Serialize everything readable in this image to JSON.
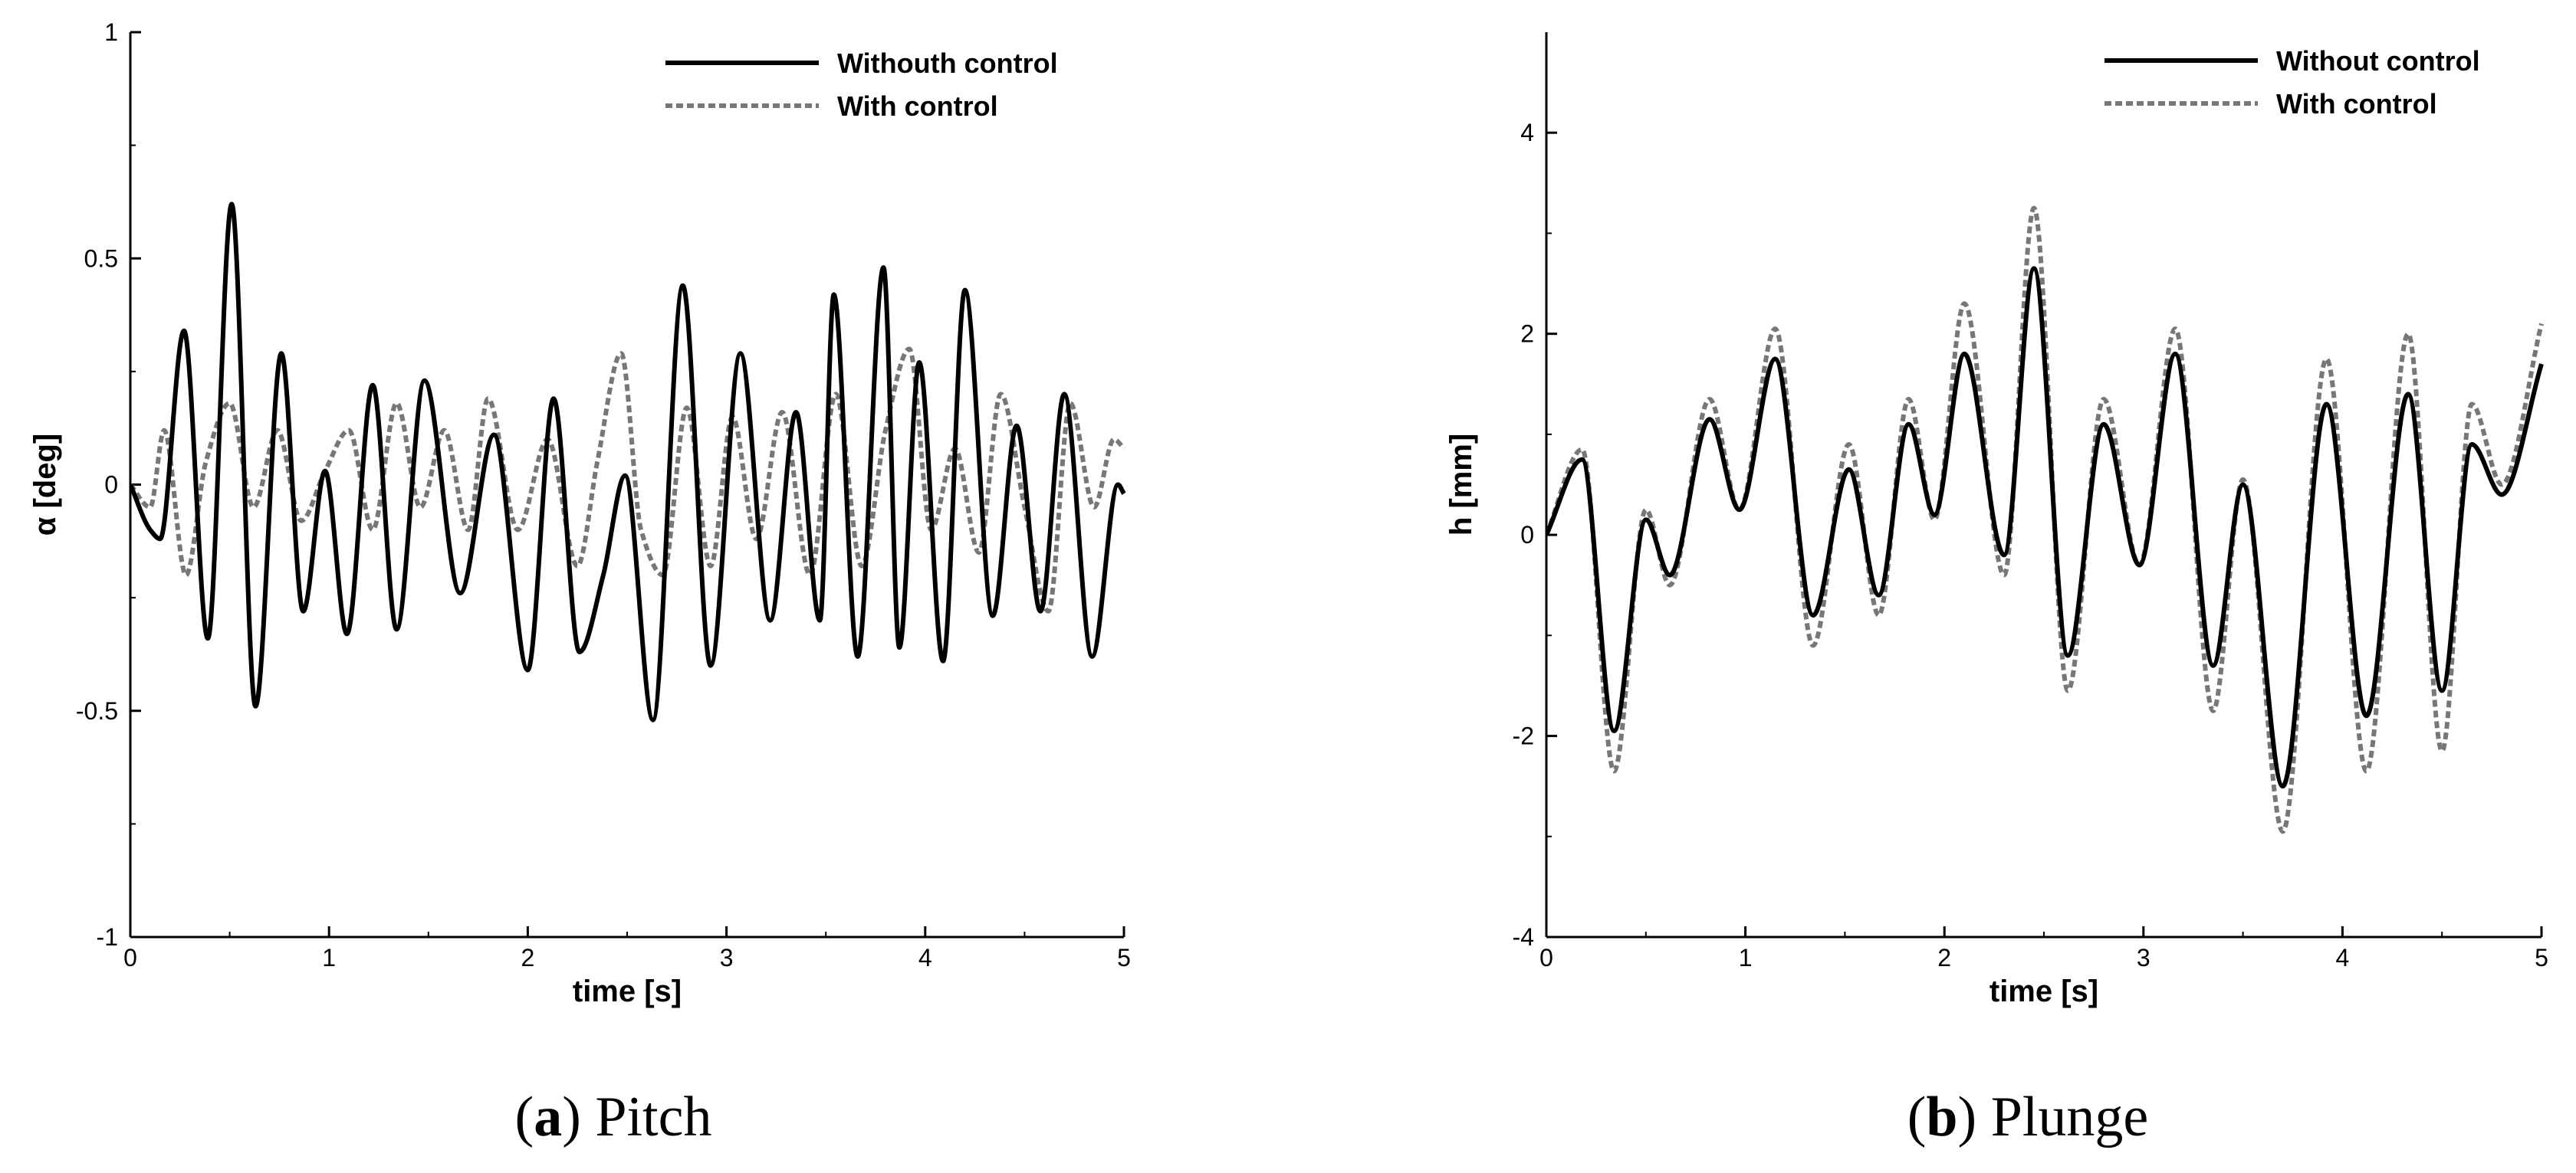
{
  "chart_data": [
    {
      "type": "line",
      "caption_letter": "a",
      "caption_text": "Pitch",
      "xlabel": "time [s]",
      "ylabel": "α [deg]",
      "xlim": [
        0,
        5
      ],
      "ylim": [
        -1,
        1
      ],
      "xticks": [
        "0",
        "1",
        "2",
        "3",
        "4",
        "5"
      ],
      "yticks": [
        "-1",
        "-0.5",
        "0",
        "0.5",
        "1"
      ],
      "legend_position": "top-right",
      "series": [
        {
          "name": "Withouth control",
          "style": "solid",
          "color": "#000000",
          "x": [
            0,
            0.1,
            0.15,
            0.27,
            0.39,
            0.51,
            0.63,
            0.76,
            0.87,
            0.98,
            1.09,
            1.22,
            1.34,
            1.48,
            1.66,
            1.83,
            2.0,
            2.13,
            2.26,
            2.38,
            2.49,
            2.63,
            2.78,
            2.92,
            3.07,
            3.22,
            3.35,
            3.47,
            3.54,
            3.66,
            3.79,
            3.87,
            3.97,
            4.09,
            4.2,
            4.34,
            4.46,
            4.58,
            4.7,
            4.84,
            4.97,
            5.0
          ],
          "y": [
            0,
            -0.1,
            -0.12,
            0.34,
            -0.34,
            0.62,
            -0.49,
            0.29,
            -0.28,
            0.03,
            -0.33,
            0.22,
            -0.32,
            0.23,
            -0.24,
            0.11,
            -0.41,
            0.19,
            -0.37,
            -0.2,
            0.02,
            -0.52,
            0.44,
            -0.4,
            0.29,
            -0.3,
            0.16,
            -0.3,
            0.42,
            -0.38,
            0.48,
            -0.36,
            0.27,
            -0.39,
            0.43,
            -0.29,
            0.13,
            -0.28,
            0.2,
            -0.38,
            0.0,
            -0.02
          ]
        },
        {
          "name": "With control",
          "style": "dotted",
          "color": "#777777",
          "x": [
            0,
            0.1,
            0.17,
            0.28,
            0.38,
            0.5,
            0.62,
            0.74,
            0.86,
            0.98,
            1.1,
            1.22,
            1.34,
            1.46,
            1.58,
            1.7,
            1.8,
            1.95,
            2.1,
            2.25,
            2.35,
            2.47,
            2.57,
            2.68,
            2.8,
            2.92,
            3.03,
            3.15,
            3.28,
            3.42,
            3.55,
            3.68,
            3.8,
            3.92,
            4.03,
            4.15,
            4.27,
            4.38,
            4.5,
            4.62,
            4.73,
            4.85,
            4.95,
            5.0
          ],
          "y": [
            0,
            -0.05,
            0.12,
            -0.2,
            0.05,
            0.18,
            -0.05,
            0.12,
            -0.08,
            0.03,
            0.12,
            -0.1,
            0.18,
            -0.05,
            0.12,
            -0.1,
            0.19,
            -0.1,
            0.1,
            -0.18,
            0.05,
            0.29,
            -0.1,
            -0.2,
            0.17,
            -0.18,
            0.15,
            -0.12,
            0.16,
            -0.2,
            0.2,
            -0.18,
            0.12,
            0.3,
            -0.1,
            0.08,
            -0.15,
            0.2,
            -0.05,
            -0.28,
            0.18,
            -0.05,
            0.1,
            0.08
          ]
        }
      ]
    },
    {
      "type": "line",
      "caption_letter": "b",
      "caption_text": "Plunge",
      "xlabel": "time [s]",
      "ylabel": "h [mm]",
      "xlim": [
        0,
        5
      ],
      "ylim": [
        -4,
        5
      ],
      "xticks": [
        "0",
        "1",
        "2",
        "3",
        "4",
        "5"
      ],
      "yticks": [
        "-4",
        "-2",
        "0",
        "2",
        "4"
      ],
      "legend_position": "top-right",
      "series": [
        {
          "name": "Without control",
          "style": "solid",
          "color": "#000000",
          "x": [
            0,
            0.18,
            0.34,
            0.5,
            0.62,
            0.82,
            0.97,
            1.15,
            1.34,
            1.52,
            1.67,
            1.82,
            1.95,
            2.1,
            2.3,
            2.45,
            2.62,
            2.8,
            2.98,
            3.16,
            3.35,
            3.5,
            3.7,
            3.92,
            4.12,
            4.33,
            4.5,
            4.65,
            4.8,
            5.0
          ],
          "y": [
            0,
            0.75,
            -1.95,
            0.15,
            -0.4,
            1.15,
            0.25,
            1.75,
            -0.8,
            0.65,
            -0.6,
            1.1,
            0.2,
            1.8,
            -0.2,
            2.65,
            -1.2,
            1.1,
            -0.3,
            1.8,
            -1.3,
            0.5,
            -2.5,
            1.3,
            -1.8,
            1.4,
            -1.55,
            0.9,
            0.4,
            1.7
          ]
        },
        {
          "name": "With control",
          "style": "dotted",
          "color": "#777777",
          "x": [
            0,
            0.18,
            0.34,
            0.5,
            0.62,
            0.82,
            0.97,
            1.15,
            1.34,
            1.52,
            1.67,
            1.82,
            1.95,
            2.1,
            2.3,
            2.45,
            2.62,
            2.8,
            2.98,
            3.16,
            3.35,
            3.5,
            3.7,
            3.92,
            4.12,
            4.33,
            4.5,
            4.65,
            4.8,
            5.0
          ],
          "y": [
            0,
            0.85,
            -2.35,
            0.25,
            -0.5,
            1.35,
            0.25,
            2.05,
            -1.1,
            0.9,
            -0.8,
            1.35,
            0.15,
            2.3,
            -0.4,
            3.25,
            -1.55,
            1.35,
            -0.3,
            2.05,
            -1.75,
            0.55,
            -2.95,
            1.75,
            -2.35,
            2.0,
            -2.15,
            1.3,
            0.5,
            2.1
          ]
        }
      ]
    }
  ]
}
